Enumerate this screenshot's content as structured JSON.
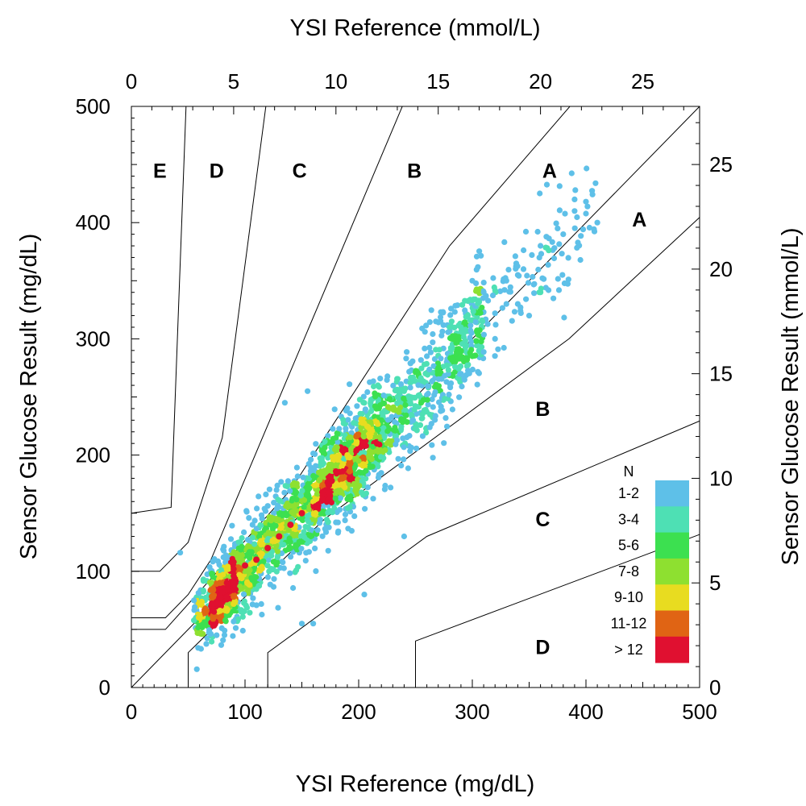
{
  "chart_data": {
    "type": "scatter",
    "subtype": "density scatter on consensus error grid",
    "x_axis_bottom": {
      "label": "YSI Reference (mg/dL)",
      "range": [
        0,
        500
      ],
      "ticks": [
        "0",
        "100",
        "200",
        "300",
        "400",
        "500"
      ],
      "tick_values": [
        0,
        100,
        200,
        300,
        400,
        500
      ]
    },
    "x_axis_top": {
      "label": "YSI Reference (mmol/L)",
      "ticks": [
        "0",
        "5",
        "10",
        "15",
        "20",
        "25"
      ],
      "tick_values": [
        0,
        5,
        10,
        15,
        20,
        25
      ]
    },
    "y_axis_left": {
      "label": "Sensor Glucose Result (mg/dL)",
      "range": [
        0,
        500
      ],
      "ticks": [
        "0",
        "100",
        "200",
        "300",
        "400",
        "500"
      ],
      "tick_values": [
        0,
        100,
        200,
        300,
        400,
        500
      ]
    },
    "y_axis_right": {
      "label": "Sensor Glucose Result (mmol/L)",
      "ticks": [
        "0",
        "5",
        "10",
        "15",
        "20",
        "25"
      ],
      "tick_values": [
        0,
        5,
        10,
        15,
        20,
        25
      ]
    },
    "mmol_factor": 18.0,
    "zone_boundaries": [
      {
        "name": "upper-A-B",
        "points": [
          [
            0,
            50
          ],
          [
            30,
            50
          ],
          [
            140,
            170
          ],
          [
            280,
            380
          ],
          [
            430,
            550
          ]
        ]
      },
      {
        "name": "lower-A-B",
        "points": [
          [
            50,
            0
          ],
          [
            50,
            30
          ],
          [
            170,
            145
          ],
          [
            385,
            300
          ],
          [
            550,
            450
          ]
        ]
      },
      {
        "name": "upper-B-C",
        "points": [
          [
            0,
            60
          ],
          [
            30,
            60
          ],
          [
            50,
            80
          ],
          [
            70,
            110
          ],
          [
            260,
            550
          ]
        ]
      },
      {
        "name": "lower-B-C",
        "points": [
          [
            120,
            0
          ],
          [
            120,
            30
          ],
          [
            260,
            130
          ],
          [
            550,
            250
          ]
        ]
      },
      {
        "name": "upper-C-D",
        "points": [
          [
            0,
            100
          ],
          [
            25,
            100
          ],
          [
            50,
            125
          ],
          [
            80,
            215
          ],
          [
            125,
            550
          ]
        ]
      },
      {
        "name": "lower-C-D",
        "points": [
          [
            250,
            0
          ],
          [
            250,
            40
          ],
          [
            550,
            150
          ]
        ]
      },
      {
        "name": "upper-D-E",
        "points": [
          [
            0,
            150
          ],
          [
            35,
            155
          ],
          [
            50,
            550
          ]
        ]
      },
      {
        "name": "identity",
        "points": [
          [
            0,
            0
          ],
          [
            550,
            550
          ]
        ]
      }
    ],
    "zone_labels": [
      {
        "text": "E",
        "x": 25,
        "y": 445
      },
      {
        "text": "D",
        "x": 75,
        "y": 445
      },
      {
        "text": "C",
        "x": 148,
        "y": 445
      },
      {
        "text": "B",
        "x": 249,
        "y": 445
      },
      {
        "text": "A",
        "x": 368,
        "y": 445
      },
      {
        "text": "A",
        "x": 447,
        "y": 403
      },
      {
        "text": "B",
        "x": 362,
        "y": 240
      },
      {
        "text": "C",
        "x": 362,
        "y": 145
      },
      {
        "text": "D",
        "x": 362,
        "y": 35
      }
    ],
    "density_model": {
      "description": "point density along identity line",
      "center_points": [
        [
          60,
          58
        ],
        [
          100,
          105
        ],
        [
          150,
          150
        ],
        [
          200,
          200
        ],
        [
          250,
          250
        ],
        [
          300,
          300
        ],
        [
          350,
          345
        ],
        [
          400,
          400
        ]
      ],
      "spread_sd_mgdl": 13,
      "peak_bins": [
        [
          100,
          105
        ],
        [
          110,
          110
        ],
        [
          120,
          120
        ],
        [
          130,
          130
        ],
        [
          140,
          140
        ],
        [
          150,
          150
        ]
      ]
    },
    "sample_points": [
      [
        43,
        116
      ],
      [
        55,
        75
      ],
      [
        65,
        55
      ],
      [
        75,
        45
      ],
      [
        340,
        355
      ],
      [
        375,
        395
      ],
      [
        390,
        420
      ],
      [
        400,
        418
      ],
      [
        390,
        410
      ],
      [
        410,
        400
      ],
      [
        380,
        390
      ],
      [
        360,
        380
      ],
      [
        345,
        360
      ],
      [
        330,
        330
      ],
      [
        320,
        322
      ],
      [
        300,
        350
      ],
      [
        290,
        310
      ],
      [
        280,
        310
      ],
      [
        270,
        275
      ],
      [
        260,
        285
      ],
      [
        255,
        245
      ],
      [
        240,
        255
      ],
      [
        230,
        240
      ],
      [
        225,
        210
      ],
      [
        210,
        200
      ],
      [
        200,
        195
      ],
      [
        190,
        200
      ],
      [
        185,
        190
      ],
      [
        180,
        190
      ],
      [
        175,
        165
      ],
      [
        170,
        170
      ],
      [
        165,
        185
      ],
      [
        160,
        160
      ],
      [
        155,
        165
      ],
      [
        150,
        150
      ],
      [
        145,
        152
      ],
      [
        140,
        140
      ],
      [
        135,
        138
      ],
      [
        130,
        130
      ],
      [
        125,
        127
      ],
      [
        120,
        122
      ],
      [
        115,
        115
      ],
      [
        110,
        112
      ],
      [
        105,
        106
      ],
      [
        100,
        100
      ],
      [
        95,
        97
      ],
      [
        90,
        92
      ],
      [
        85,
        88
      ],
      [
        80,
        82
      ],
      [
        75,
        76
      ],
      [
        70,
        70
      ],
      [
        65,
        68
      ],
      [
        60,
        62
      ],
      [
        158,
        130
      ],
      [
        205,
        80
      ],
      [
        240,
        130
      ],
      [
        160,
        55
      ],
      [
        150,
        55
      ],
      [
        155,
        255
      ],
      [
        135,
        245
      ],
      [
        180,
        215
      ],
      [
        220,
        230
      ],
      [
        290,
        270
      ],
      [
        310,
        340
      ],
      [
        330,
        350
      ],
      [
        350,
        320
      ],
      [
        360,
        340
      ],
      [
        340,
        330
      ],
      [
        320,
        300
      ],
      [
        300,
        285
      ]
    ],
    "legend": {
      "title": "N",
      "entries": [
        {
          "label": "1-2",
          "color": "#5ec0e8"
        },
        {
          "label": "3-4",
          "color": "#4ee0b4"
        },
        {
          "label": "5-6",
          "color": "#3ce050"
        },
        {
          "label": "7-8",
          "color": "#8ee030"
        },
        {
          "label": "9-10",
          "color": "#e8dc20"
        },
        {
          "label": "11-12",
          "color": "#e06414"
        },
        {
          "label": "> 12",
          "color": "#e01030"
        }
      ]
    }
  }
}
